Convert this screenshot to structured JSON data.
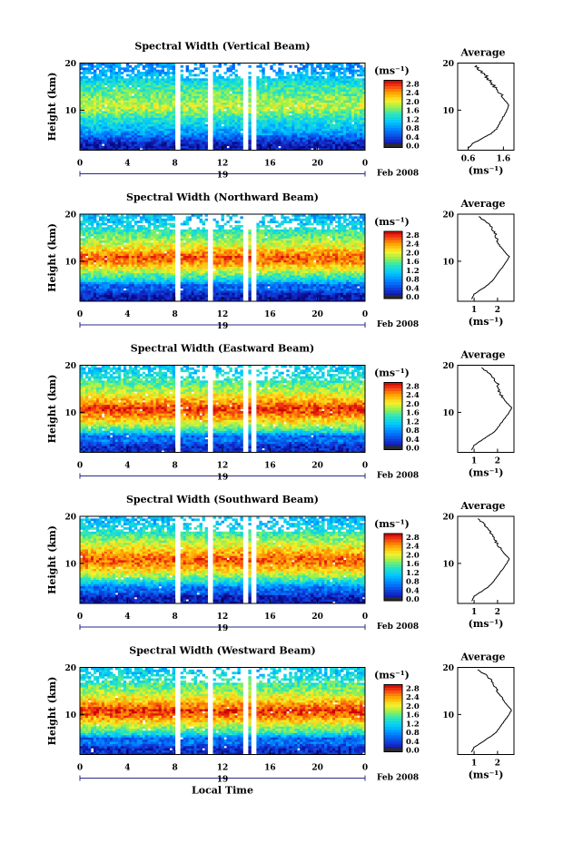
{
  "chart_data": [
    {
      "type": "heatmap",
      "title": "Spectral Width (Vertical Beam)",
      "xlabel": "",
      "ylabel": "Height (km)",
      "x_ticks": [
        "0",
        "4",
        "8",
        "12",
        "16",
        "20",
        "0"
      ],
      "y_ticks": [
        "20",
        "10"
      ],
      "xlim": [
        0,
        24
      ],
      "ylim": [
        1.5,
        20
      ],
      "date_day": "19",
      "date_month_year": "Feb 2008",
      "colorbar": {
        "unit": "(ms⁻¹)",
        "ticks": [
          "2.8",
          "2.4",
          "2.0",
          "1.6",
          "1.2",
          "0.8",
          "0.4",
          "0.0"
        ],
        "range": [
          0,
          2.8
        ]
      },
      "data_gaps_hours": [
        [
          8.0,
          8.35
        ],
        [
          10.8,
          11.1
        ],
        [
          13.9,
          14.15
        ],
        [
          14.5,
          14.8
        ]
      ],
      "profile_by_height": {
        "height_km": [
          3,
          4,
          5,
          6,
          8,
          10,
          11,
          13,
          15,
          17,
          19
        ],
        "width_ms": [
          0.2,
          0.5,
          0.8,
          1.0,
          1.3,
          1.7,
          1.8,
          1.6,
          1.4,
          1.1,
          0.8
        ]
      },
      "average": {
        "title": "Average",
        "xlabel": "(ms⁻¹)",
        "x_ticks": [
          "0.6",
          "1.6"
        ],
        "y_ticks": [
          "20",
          "10"
        ],
        "xlim": [
          0.3,
          1.9
        ],
        "height_km": [
          2,
          3,
          4,
          5,
          6,
          8,
          10,
          11,
          12,
          14,
          16,
          18,
          19.5
        ],
        "width_ms": [
          0.6,
          0.75,
          1.0,
          1.25,
          1.4,
          1.55,
          1.7,
          1.75,
          1.65,
          1.45,
          1.25,
          1.0,
          0.8
        ]
      }
    },
    {
      "type": "heatmap",
      "title": "Spectral Width (Northward Beam)",
      "xlabel": "",
      "ylabel": "Height (km)",
      "x_ticks": [
        "0",
        "4",
        "8",
        "12",
        "16",
        "20",
        "0"
      ],
      "y_ticks": [
        "20",
        "10"
      ],
      "xlim": [
        0,
        24
      ],
      "ylim": [
        1.5,
        20
      ],
      "date_day": "19",
      "date_month_year": "Feb 2008",
      "colorbar": {
        "unit": "(ms⁻¹)",
        "ticks": [
          "2.8",
          "2.4",
          "2.0",
          "1.6",
          "1.2",
          "0.8",
          "0.4",
          "0.0"
        ],
        "range": [
          0,
          2.8
        ]
      },
      "data_gaps_hours": [
        [
          8.0,
          8.35
        ],
        [
          10.8,
          11.1
        ],
        [
          13.9,
          14.15
        ],
        [
          14.5,
          14.8
        ]
      ],
      "profile_by_height": {
        "height_km": [
          3,
          4,
          5,
          6,
          8,
          10,
          11,
          13,
          15,
          17,
          19
        ],
        "width_ms": [
          0.2,
          0.6,
          0.6,
          1.2,
          1.8,
          2.4,
          2.5,
          2.0,
          1.6,
          1.3,
          1.0
        ]
      },
      "average": {
        "title": "Average",
        "xlabel": "(ms⁻¹)",
        "x_ticks": [
          "1",
          "2"
        ],
        "y_ticks": [
          "20",
          "10"
        ],
        "xlim": [
          0.3,
          2.7
        ],
        "height_km": [
          2,
          3,
          4,
          5,
          6,
          8,
          10,
          11,
          12,
          14,
          16,
          18,
          19.5
        ],
        "width_ms": [
          0.9,
          1.0,
          1.3,
          1.6,
          1.8,
          2.1,
          2.4,
          2.5,
          2.3,
          2.0,
          1.9,
          1.6,
          1.2
        ]
      }
    },
    {
      "type": "heatmap",
      "title": "Spectral Width (Eastward Beam)",
      "xlabel": "",
      "ylabel": "Height (km)",
      "x_ticks": [
        "0",
        "4",
        "8",
        "12",
        "16",
        "20",
        "0"
      ],
      "y_ticks": [
        "20",
        "10"
      ],
      "xlim": [
        0,
        24
      ],
      "ylim": [
        1.5,
        20
      ],
      "date_day": "19",
      "date_month_year": "Feb 2008",
      "colorbar": {
        "unit": "(ms⁻¹)",
        "ticks": [
          "2.8",
          "2.4",
          "2.0",
          "1.6",
          "1.2",
          "0.8",
          "0.4",
          "0.0"
        ],
        "range": [
          0,
          2.8
        ]
      },
      "data_gaps_hours": [
        [
          8.0,
          8.35
        ],
        [
          10.8,
          11.1
        ],
        [
          13.9,
          14.15
        ],
        [
          14.5,
          14.8
        ]
      ],
      "profile_by_height": {
        "height_km": [
          3,
          4,
          5,
          6,
          8,
          10,
          11,
          13,
          15,
          17,
          19
        ],
        "width_ms": [
          0.3,
          0.7,
          0.6,
          1.3,
          2.0,
          2.5,
          2.6,
          2.1,
          1.7,
          1.4,
          1.1
        ]
      },
      "average": {
        "title": "Average",
        "xlabel": "(ms⁻¹)",
        "x_ticks": [
          "1",
          "2"
        ],
        "y_ticks": [
          "20",
          "10"
        ],
        "xlim": [
          0.3,
          2.7
        ],
        "height_km": [
          2,
          3,
          4,
          5,
          6,
          8,
          10,
          11,
          12,
          14,
          16,
          18,
          19.5
        ],
        "width_ms": [
          0.9,
          1.0,
          1.3,
          1.6,
          1.9,
          2.2,
          2.5,
          2.6,
          2.4,
          2.1,
          2.0,
          1.7,
          1.3
        ]
      }
    },
    {
      "type": "heatmap",
      "title": "Spectral Width (Southward Beam)",
      "xlabel": "",
      "ylabel": "Height (km)",
      "x_ticks": [
        "0",
        "4",
        "8",
        "12",
        "16",
        "20",
        "0"
      ],
      "y_ticks": [
        "20",
        "10"
      ],
      "xlim": [
        0,
        24
      ],
      "ylim": [
        1.5,
        20
      ],
      "date_day": "19",
      "date_month_year": "Feb 2008",
      "colorbar": {
        "unit": "(ms⁻¹)",
        "ticks": [
          "2.8",
          "2.4",
          "2.0",
          "1.6",
          "1.2",
          "0.8",
          "0.4",
          "0.0"
        ],
        "range": [
          0,
          2.8
        ]
      },
      "data_gaps_hours": [
        [
          8.0,
          8.35
        ],
        [
          10.8,
          11.1
        ],
        [
          13.9,
          14.15
        ],
        [
          14.5,
          14.8
        ]
      ],
      "profile_by_height": {
        "height_km": [
          3,
          4,
          5,
          6,
          8,
          10,
          11,
          13,
          15,
          17,
          19
        ],
        "width_ms": [
          0.2,
          0.6,
          0.7,
          1.2,
          1.9,
          2.4,
          2.5,
          2.1,
          1.7,
          1.3,
          1.0
        ]
      },
      "average": {
        "title": "Average",
        "xlabel": "(ms⁻¹)",
        "x_ticks": [
          "1",
          "2"
        ],
        "y_ticks": [
          "20",
          "10"
        ],
        "xlim": [
          0.3,
          2.7
        ],
        "height_km": [
          2,
          3,
          4,
          5,
          6,
          8,
          10,
          11,
          12,
          14,
          16,
          18,
          19.5
        ],
        "width_ms": [
          0.9,
          1.0,
          1.3,
          1.6,
          1.8,
          2.1,
          2.4,
          2.5,
          2.3,
          2.0,
          1.8,
          1.5,
          1.2
        ]
      }
    },
    {
      "type": "heatmap",
      "title": "Spectral Width (Westward Beam)",
      "xlabel": "Local Time",
      "ylabel": "Height (km)",
      "x_ticks": [
        "0",
        "4",
        "8",
        "12",
        "16",
        "20",
        "0"
      ],
      "y_ticks": [
        "20",
        "10"
      ],
      "xlim": [
        0,
        24
      ],
      "ylim": [
        1.5,
        20
      ],
      "date_day": "19",
      "date_month_year": "Feb 2008",
      "colorbar": {
        "unit": "(ms⁻¹)",
        "ticks": [
          "2.8",
          "2.4",
          "2.0",
          "1.6",
          "1.2",
          "0.8",
          "0.4",
          "0.0"
        ],
        "range": [
          0,
          2.8
        ]
      },
      "data_gaps_hours": [
        [
          8.0,
          8.35
        ],
        [
          10.8,
          11.1
        ],
        [
          13.9,
          14.15
        ],
        [
          14.5,
          14.8
        ]
      ],
      "profile_by_height": {
        "height_km": [
          3,
          4,
          5,
          6,
          8,
          10,
          11,
          13,
          15,
          17,
          19
        ],
        "width_ms": [
          0.3,
          0.7,
          0.6,
          1.3,
          1.9,
          2.5,
          2.6,
          2.1,
          1.7,
          1.4,
          1.1
        ]
      },
      "average": {
        "title": "Average",
        "xlabel": "(ms⁻¹)",
        "x_ticks": [
          "1",
          "2"
        ],
        "y_ticks": [
          "20",
          "10"
        ],
        "xlim": [
          0.3,
          2.7
        ],
        "height_km": [
          2,
          3,
          4,
          5,
          6,
          8,
          10,
          11,
          12,
          14,
          16,
          18,
          19.5
        ],
        "width_ms": [
          0.9,
          1.0,
          1.3,
          1.6,
          1.9,
          2.2,
          2.5,
          2.6,
          2.4,
          2.1,
          1.9,
          1.6,
          1.2
        ]
      }
    }
  ]
}
